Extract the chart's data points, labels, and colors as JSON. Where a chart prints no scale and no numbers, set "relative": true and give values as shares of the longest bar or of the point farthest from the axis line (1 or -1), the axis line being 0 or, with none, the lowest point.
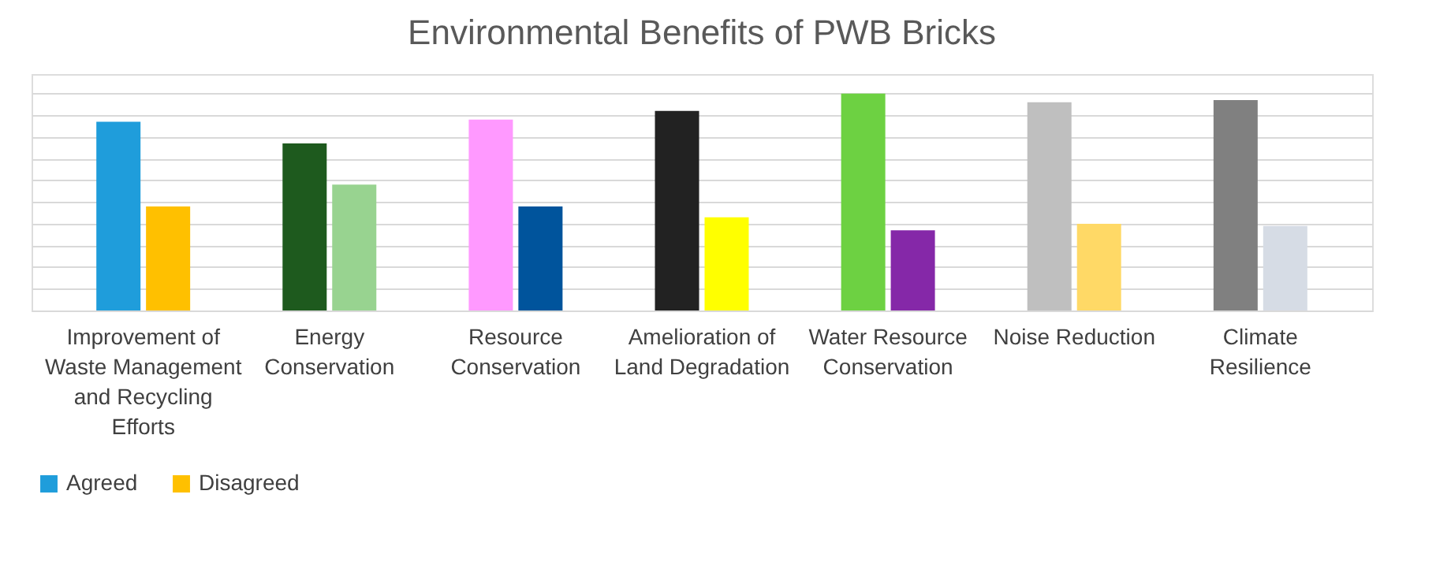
{
  "chart_data": {
    "type": "bar",
    "title": "Environmental Benefits of PWB Bricks",
    "relative": true,
    "categories": [
      "Improvement of Waste Management and Recycling Efforts",
      "Energy Conservation",
      "Resource Conservation",
      "Amelioration of Land Degradation",
      "Water Resource Conservation",
      "Noise Reduction",
      "Climate Resilience"
    ],
    "series": [
      {
        "name": "Agreed",
        "color": "#1f9ddb",
        "colors": [
          "#1f9ddb",
          "#1e5a1e",
          "#ff99ff",
          "#222222",
          "#6dd142",
          "#bfbfbf",
          "#808080"
        ],
        "values": [
          0.87,
          0.77,
          0.88,
          0.92,
          1.0,
          0.96,
          0.97
        ]
      },
      {
        "name": "Disagreed",
        "color": "#ffc000",
        "colors": [
          "#ffc000",
          "#98d390",
          "#00549c",
          "#ffff00",
          "#8528a8",
          "#ffd966",
          "#d6dce5"
        ],
        "values": [
          0.48,
          0.58,
          0.48,
          0.43,
          0.37,
          0.4,
          0.39
        ]
      }
    ],
    "grid": "y",
    "legend": "bottom"
  }
}
